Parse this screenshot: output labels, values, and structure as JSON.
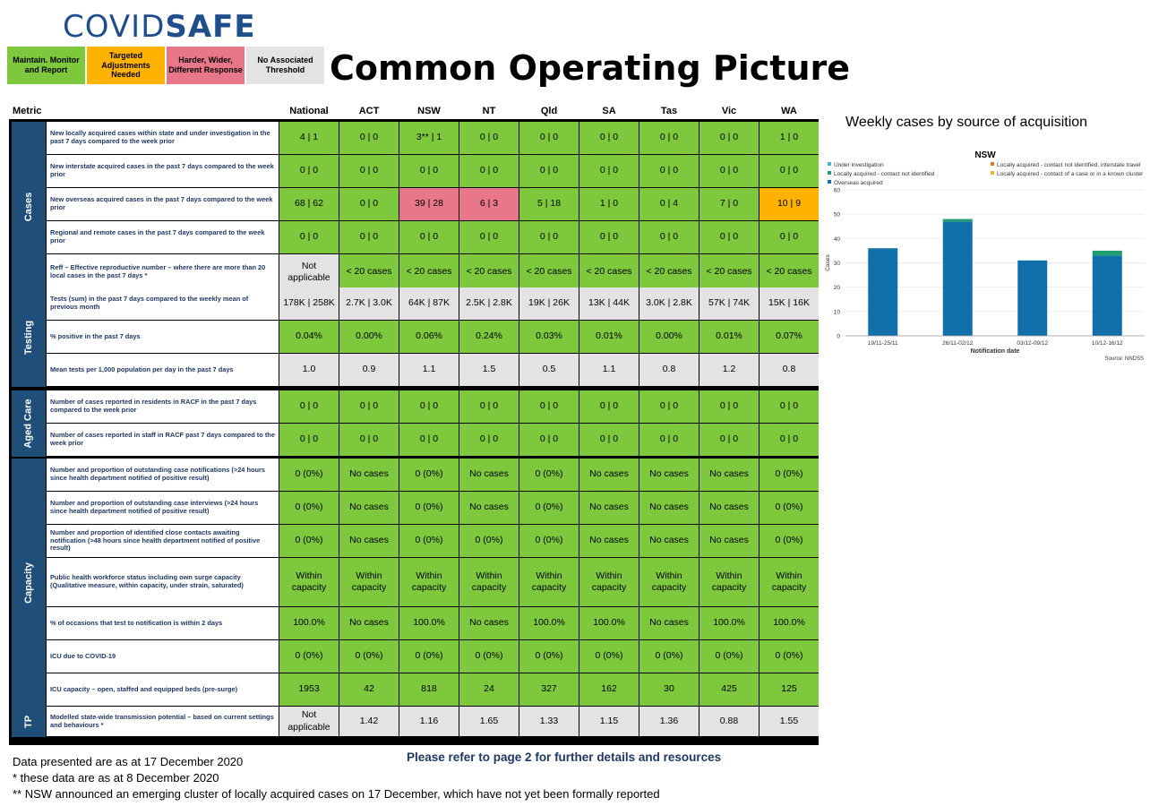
{
  "logo": {
    "light": "COVID",
    "bold": "SAFE"
  },
  "legend": [
    {
      "text": "Maintain. Monitor and Report",
      "color": "#7ec83e"
    },
    {
      "text": "Targeted Adjustments Needed",
      "color": "#ffb300"
    },
    {
      "text": "Harder, Wider, Different Response",
      "color": "#e8778a"
    },
    {
      "text": "No Associated Threshold",
      "color": "#e3e3e3"
    }
  ],
  "title": "Common Operating Picture",
  "header": {
    "metric": "Metric",
    "cols": [
      "National",
      "ACT",
      "NSW",
      "NT",
      "Qld",
      "SA",
      "Tas",
      "Vic",
      "WA"
    ]
  },
  "sections": [
    {
      "label": "Cases",
      "rows": [
        {
          "metric": "New locally acquired cases within state and under investigation in the past 7 days compared to the week prior",
          "vals": [
            "4 | 1",
            "0 | 0",
            "3** | 1",
            "0 | 0",
            "0 | 0",
            "0 | 0",
            "0 | 0",
            "0 | 0",
            "1 | 0"
          ],
          "c": "ggggggggg"
        },
        {
          "metric": "New interstate acquired cases in the past 7 days compared to the week prior",
          "vals": [
            "0 | 0",
            "0 | 0",
            "0 | 0",
            "0 | 0",
            "0 | 0",
            "0 | 0",
            "0 | 0",
            "0 | 0",
            "0 | 0"
          ],
          "c": "ggggggggg"
        },
        {
          "metric": "New overseas acquired cases in the past 7 days compared to the week prior",
          "vals": [
            "68 | 62",
            "0 | 0",
            "39 | 28",
            "6 | 3",
            "5 | 18",
            "1 | 0",
            "0 | 4",
            "7 | 0",
            "10 | 9"
          ],
          "c": "ggppggggo"
        },
        {
          "metric": "Regional and remote cases in the past 7 days compared to the week prior",
          "vals": [
            "0 | 0",
            "0 | 0",
            "0 | 0",
            "0 | 0",
            "0 | 0",
            "0 | 0",
            "0 | 0",
            "0 | 0",
            "0 | 0"
          ],
          "c": "ggggggggg"
        },
        {
          "metric": "Reff – Effective reproductive number – where there are more than 20 local cases in the past 7 days *",
          "vals": [
            "Not applicable",
            "< 20 cases",
            "< 20 cases",
            "< 20 cases",
            "< 20 cases",
            "< 20 cases",
            "< 20 cases",
            "< 20 cases",
            "< 20 cases"
          ],
          "c": "wgggggggg"
        }
      ]
    },
    {
      "label": "Testing",
      "rows": [
        {
          "metric": "Tests (sum) in the past 7 days compared to the weekly mean of previous month",
          "vals": [
            "178K | 258K",
            "2.7K | 3.0K",
            "64K | 87K",
            "2.5K | 2.8K",
            "19K | 26K",
            "13K | 44K",
            "3.0K | 2.8K",
            "57K | 74K",
            "15K | 16K"
          ],
          "c": "wwwwwwwww"
        },
        {
          "metric": "% positive in the past 7 days",
          "vals": [
            "0.04%",
            "0.00%",
            "0.06%",
            "0.24%",
            "0.03%",
            "0.01%",
            "0.00%",
            "0.01%",
            "0.07%"
          ],
          "c": "ggggggggg"
        },
        {
          "metric": "Mean tests per 1,000 population per day in the past 7 days",
          "vals": [
            "1.0",
            "0.9",
            "1.1",
            "1.5",
            "0.5",
            "1.1",
            "0.8",
            "1.2",
            "0.8"
          ],
          "c": "wwwwwwwww"
        }
      ]
    },
    {
      "label": "Aged Care",
      "rows": [
        {
          "metric": "Number of cases reported in residents in RACF in the past 7 days compared to the week prior",
          "vals": [
            "0 | 0",
            "0 | 0",
            "0 | 0",
            "0 | 0",
            "0 | 0",
            "0 | 0",
            "0 | 0",
            "0 | 0",
            "0 | 0"
          ],
          "c": "ggggggggg"
        },
        {
          "metric": "Number of cases reported in staff in RACF past 7 days compared to the week prior",
          "vals": [
            "0 | 0",
            "0 | 0",
            "0 | 0",
            "0 | 0",
            "0 | 0",
            "0 | 0",
            "0 | 0",
            "0 | 0",
            "0 | 0"
          ],
          "c": "ggggggggg"
        }
      ]
    },
    {
      "label": "Capacity",
      "rows": [
        {
          "metric": "Number and proportion of outstanding case notifications (>24 hours since health department notified of positive result)",
          "vals": [
            "0 (0%)",
            "No cases",
            "0 (0%)",
            "No cases",
            "0 (0%)",
            "No cases",
            "No cases",
            "No cases",
            "0 (0%)"
          ],
          "c": "ggggggggg"
        },
        {
          "metric": "Number and proportion of outstanding case interviews (>24 hours since health department notified of positive result)",
          "vals": [
            "0 (0%)",
            "No cases",
            "0 (0%)",
            "No cases",
            "0 (0%)",
            "No cases",
            "No cases",
            "No cases",
            "0 (0%)"
          ],
          "c": "ggggggggg"
        },
        {
          "metric": "Number and proportion of identified close contacts awaiting notification (>48 hours since health department notified of positive result)",
          "vals": [
            "0 (0%)",
            "No cases",
            "0 (0%)",
            "0 (0%)",
            "0 (0%)",
            "No cases",
            "No cases",
            "No cases",
            "0 (0%)"
          ],
          "c": "ggggggggg"
        },
        {
          "metric": "Public health workforce status including own surge capacity (Qualitative measure, within capacity, under strain, saturated)",
          "vals": [
            "Within capacity",
            "Within capacity",
            "Within capacity",
            "Within capacity",
            "Within capacity",
            "Within capacity",
            "Within capacity",
            "Within capacity",
            "Within capacity"
          ],
          "c": "ggggggggg"
        },
        {
          "metric": "% of occasions that test to notification is within 2 days",
          "vals": [
            "100.0%",
            "No cases",
            "100.0%",
            "No cases",
            "100.0%",
            "100.0%",
            "No cases",
            "100.0%",
            "100.0%"
          ],
          "c": "ggggggggg"
        },
        {
          "metric": "ICU due to COVID-19",
          "vals": [
            "0 (0%)",
            "0 (0%)",
            "0 (0%)",
            "0 (0%)",
            "0 (0%)",
            "0 (0%)",
            "0 (0%)",
            "0 (0%)",
            "0 (0%)"
          ],
          "c": "ggggggggg"
        },
        {
          "metric": "ICU capacity – open, staffed and equipped beds (pre-surge)",
          "vals": [
            "1953",
            "42",
            "818",
            "24",
            "327",
            "162",
            "30",
            "425",
            "125"
          ],
          "c": "ggggggggg"
        }
      ]
    },
    {
      "label": "TP",
      "rows": [
        {
          "metric": "Modelled state-wide transmission potential – based on current settings and behaviours *",
          "vals": [
            "Not applicable",
            "1.42",
            "1.16",
            "1.65",
            "1.33",
            "1.15",
            "1.36",
            "0.88",
            "1.55"
          ],
          "c": "wwwwwwwww"
        }
      ]
    }
  ],
  "footer": {
    "line1": "Data presented are as at 17 December 2020",
    "line2": "* these data are as at 8 December 2020",
    "line3": "** NSW announced an emerging cluster of locally acquired cases on 17 December, which have not yet been formally reported",
    "refer": "Please refer to page 2 for further details and resources"
  },
  "chart_heading": "Weekly cases by source of acquisition",
  "chart_data": {
    "type": "bar",
    "title": "NSW",
    "xlabel": "Notification date",
    "ylabel": "Cases",
    "ylim": [
      0,
      60
    ],
    "yticks": [
      0,
      10,
      20,
      30,
      40,
      50,
      60
    ],
    "categories": [
      "19/11-25/11",
      "26/11-02/12",
      "03/12-09/12",
      "10/12-16/12"
    ],
    "stacked": true,
    "series": [
      {
        "name": "Overseas acquired",
        "color": "#1170aa",
        "values": [
          36,
          47,
          31,
          33
        ]
      },
      {
        "name": "Locally acquired - contact not identified",
        "color": "#1e9e6e",
        "values": [
          0,
          1,
          0,
          2
        ]
      },
      {
        "name": "Under investigation",
        "color": "#3fb7d6",
        "values": [
          0,
          0,
          0,
          0
        ]
      },
      {
        "name": "Locally acquired - contact not identified, interstate travel",
        "color": "#e0742b",
        "values": [
          0,
          0,
          0,
          0
        ]
      },
      {
        "name": "Locally acquired - contact of a case or in a known cluster",
        "color": "#f2b134",
        "values": [
          0,
          0,
          0,
          0
        ]
      }
    ],
    "legend_order": [
      "Under investigation",
      "Locally acquired - contact not identified, interstate travel",
      "Locally acquired - contact not identified",
      "Locally acquired - contact of a case or in a known cluster",
      "Overseas acquired"
    ],
    "source": "Source: NNDSS"
  }
}
